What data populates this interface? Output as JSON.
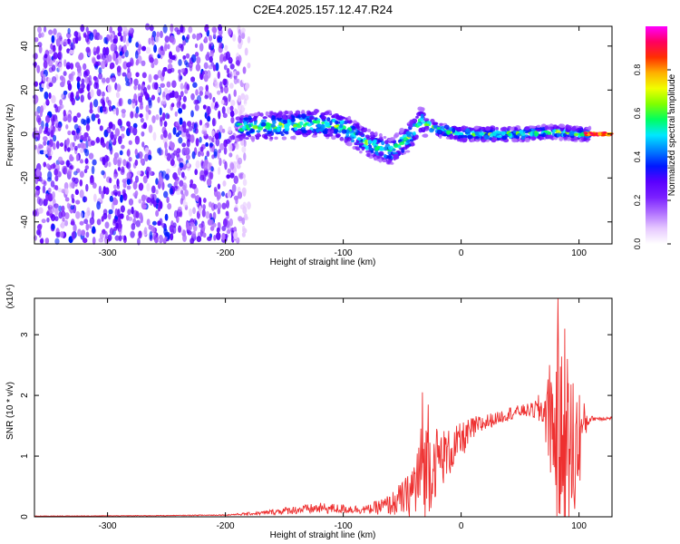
{
  "figure": {
    "title": "C2E4.2025.157.12.47.R24"
  },
  "chart_data": [
    {
      "type": "heatmap",
      "xlabel": "Height of straight line (km)",
      "ylabel": "Frequency (Hz)",
      "xlim": [
        -362,
        128
      ],
      "ylim": [
        -50,
        49
      ],
      "x_ticks": [
        -300,
        -200,
        -100,
        0,
        100
      ],
      "y_ticks": [
        -40,
        -20,
        0,
        20,
        40
      ],
      "colorbar": {
        "label": "Normalized spectral amplitude",
        "range": [
          0,
          1
        ],
        "ticks": [
          "0.0",
          "0.2",
          "0.4",
          "0.6",
          "0.8"
        ],
        "colors": [
          "#ffffff",
          "#e6c8ff",
          "#b070ff",
          "#7a20ff",
          "#5a00ff",
          "#0018ff",
          "#0080ff",
          "#00e8ff",
          "#00ff60",
          "#80ff00",
          "#f0ff00",
          "#ffb000",
          "#ff3000",
          "#ff0060",
          "#ff00ff"
        ]
      },
      "segments": [
        {
          "name": "noise",
          "x_range": [
            -362,
            -180
          ],
          "freq_spread": 49,
          "amplitude": 0.35
        },
        {
          "name": "signal",
          "x_range": [
            -190,
            110
          ],
          "amplitude": 0.7,
          "center_freq": [
            [
              -190,
              3
            ],
            [
              -150,
              4
            ],
            [
              -120,
              5
            ],
            [
              -100,
              3
            ],
            [
              -80,
              -4
            ],
            [
              -60,
              -8
            ],
            [
              -45,
              -2
            ],
            [
              -35,
              6
            ],
            [
              -20,
              2
            ],
            [
              0,
              0
            ],
            [
              50,
              0
            ],
            [
              80,
              1
            ],
            [
              100,
              0
            ],
            [
              110,
              0
            ]
          ]
        },
        {
          "name": "tone",
          "x_range": [
            105,
            128
          ],
          "center_freq": 0,
          "amplitude": 0.95
        }
      ]
    },
    {
      "type": "line",
      "xlabel": "Height of straight line (km)",
      "ylabel": "SNR (10 * v/v)",
      "y_multiplier": "(x10⁴)",
      "xlim": [
        -362,
        128
      ],
      "ylim": [
        0,
        3.6
      ],
      "x_ticks": [
        -300,
        -200,
        -100,
        0,
        100
      ],
      "y_ticks": [
        0,
        1,
        2,
        3
      ],
      "color": "#ee3030",
      "envelope": {
        "x": [
          -362,
          -250,
          -200,
          -170,
          -150,
          -120,
          -100,
          -80,
          -60,
          -45,
          -40,
          -35,
          -30,
          -25,
          -20,
          -10,
          0,
          10,
          20,
          30,
          40,
          50,
          60,
          70,
          75,
          80,
          85,
          90,
          95,
          100,
          105,
          110,
          128
        ],
        "mean": [
          0.01,
          0.02,
          0.03,
          0.06,
          0.1,
          0.14,
          0.13,
          0.12,
          0.2,
          0.35,
          0.5,
          0.65,
          0.8,
          0.85,
          0.95,
          1.05,
          1.25,
          1.45,
          1.55,
          1.62,
          1.7,
          1.74,
          1.76,
          1.76,
          1.6,
          1.4,
          1.2,
          1.1,
          1.0,
          1.3,
          1.55,
          1.62,
          1.62
        ],
        "spread": [
          0.005,
          0.005,
          0.01,
          0.03,
          0.06,
          0.09,
          0.08,
          0.07,
          0.18,
          0.35,
          0.6,
          0.85,
          0.85,
          0.7,
          0.55,
          0.4,
          0.3,
          0.2,
          0.15,
          0.1,
          0.12,
          0.1,
          0.12,
          0.35,
          0.8,
          1.4,
          1.6,
          1.5,
          1.4,
          0.9,
          0.3,
          0.04,
          0.03
        ]
      },
      "peaks": [
        [
          -33,
          2.05
        ],
        [
          -28,
          1.85
        ],
        [
          75,
          2.5
        ],
        [
          82,
          3.6
        ],
        [
          88,
          3.1
        ],
        [
          90,
          2.6
        ],
        [
          95,
          2.2
        ]
      ]
    }
  ]
}
